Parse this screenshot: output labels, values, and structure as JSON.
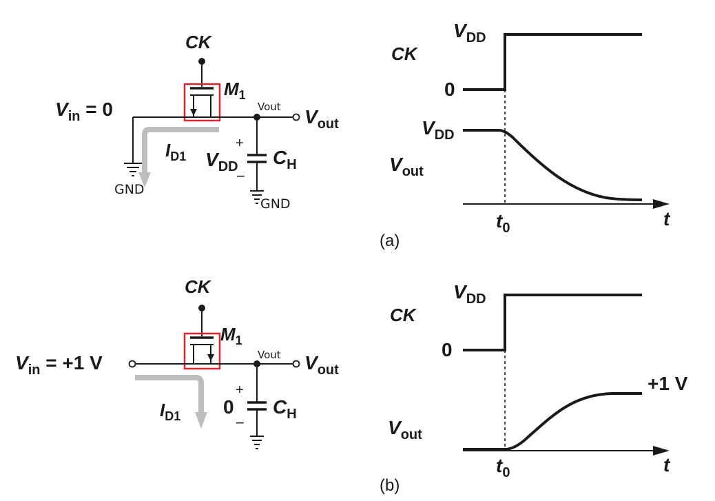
{
  "colors": {
    "ink": "#1a1a1a",
    "highlight": "#d9262c",
    "current_arrow": "#bdbdbd"
  },
  "panel_a": {
    "caption": "(a)",
    "circuit": {
      "ck": "CK",
      "transistor": {
        "main": "M",
        "sub": "1"
      },
      "vin": {
        "main": "V",
        "sub": "in",
        "rest": " = 0"
      },
      "vout": {
        "main": "V",
        "sub": "out"
      },
      "vout_hand": "Vout",
      "current": {
        "main": "I",
        "sub": "D1"
      },
      "cap_voltage": {
        "main": "V",
        "sub": "DD"
      },
      "plus": "+",
      "minus": "−",
      "cap": {
        "main": "C",
        "sub": "H"
      },
      "gnd_left": "GND",
      "gnd_right": "GND"
    },
    "waveform": {
      "ck_label": "CK",
      "vdd": {
        "main": "V",
        "sub": "DD"
      },
      "zero": "0",
      "vout_start": {
        "main": "V",
        "sub": "DD"
      },
      "vout_label": {
        "main": "V",
        "sub": "out"
      },
      "t0": {
        "main": "t",
        "sub": "0"
      },
      "t": "t"
    }
  },
  "panel_b": {
    "caption": "(b)",
    "circuit": {
      "ck": "CK",
      "transistor": {
        "main": "M",
        "sub": "1"
      },
      "vin": {
        "main": "V",
        "sub": "in",
        "rest": " = +1 V"
      },
      "vout": {
        "main": "V",
        "sub": "out"
      },
      "vout_hand": "Vout",
      "current": {
        "main": "I",
        "sub": "D1"
      },
      "cap_voltage": "0",
      "plus": "+",
      "minus": "−",
      "cap": {
        "main": "C",
        "sub": "H"
      }
    },
    "waveform": {
      "ck_label": "CK",
      "vdd": {
        "main": "V",
        "sub": "DD"
      },
      "zero": "0",
      "final": "+1 V",
      "vout_label": {
        "main": "V",
        "sub": "out"
      },
      "t0": {
        "main": "t",
        "sub": "0"
      },
      "t": "t"
    }
  }
}
